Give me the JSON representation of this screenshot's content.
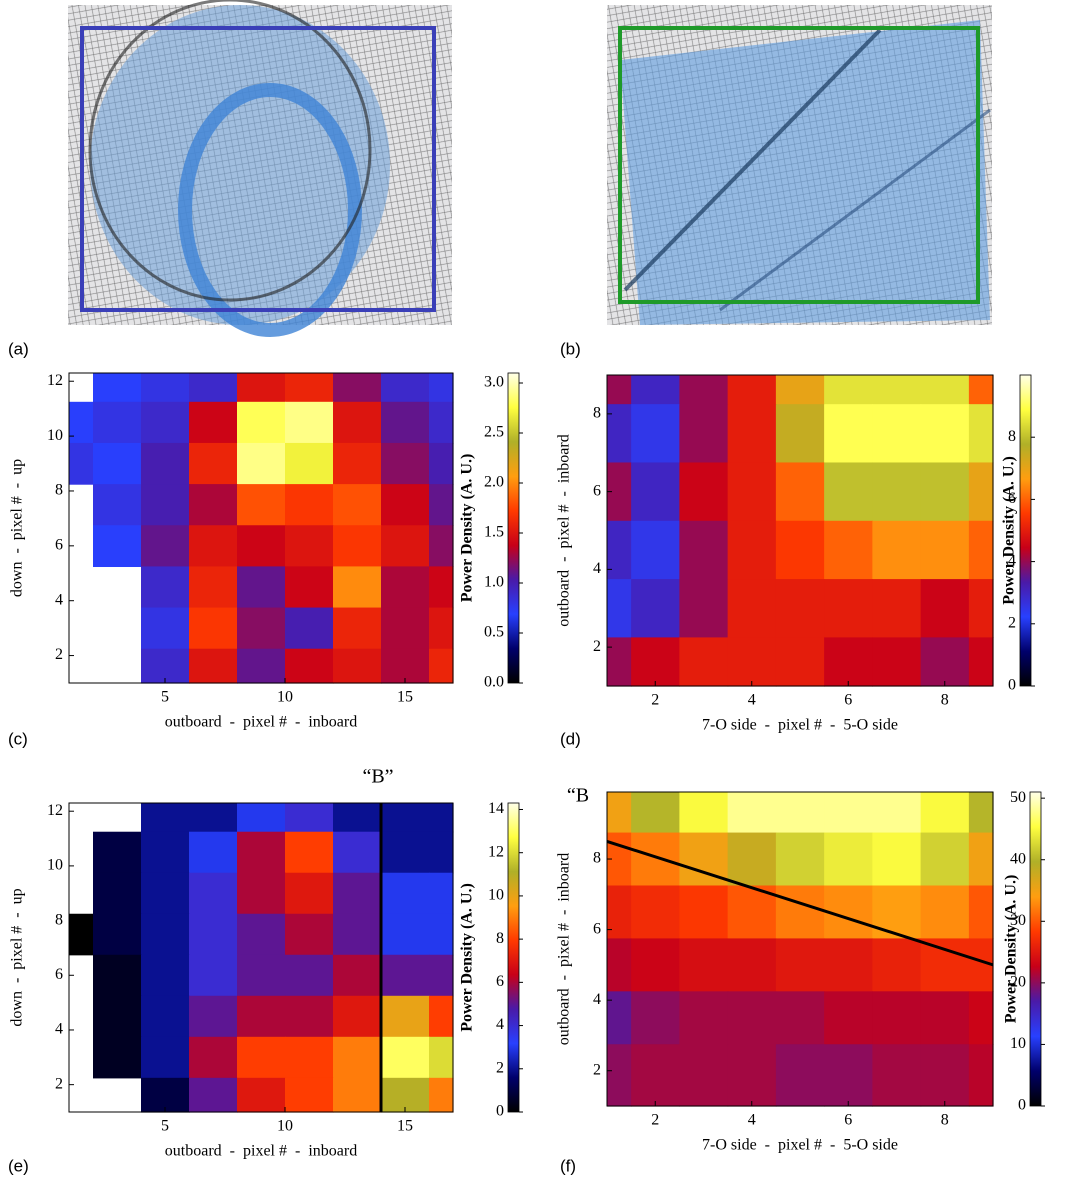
{
  "panels": [
    {
      "label": "(a)"
    },
    {
      "label": "(b)"
    }
  ],
  "chart_data": [
    {
      "type": "heatmap",
      "panel_label": "(c)",
      "xlabel": "outboard  -  pixel #  -  inboard",
      "ylabel": "down  -  pixel #  -  up",
      "colorbar_label": "Power Density (A. U.)",
      "colormap": [
        "#000000",
        "#00006b",
        "#2840ff",
        "#4a1aa8",
        "#c80018",
        "#ff3a00",
        "#ff9e10",
        "#b0b028",
        "#ffff40",
        "#ffffe8"
      ],
      "xlim": [
        1,
        17
      ],
      "ylim": [
        1,
        12.3
      ],
      "xticks": [
        5,
        10,
        15
      ],
      "yticks": [
        2,
        4,
        6,
        8,
        10,
        12
      ],
      "clim": [
        0,
        3.1
      ],
      "cticks": [
        {
          "value": 0,
          "label": "0.0"
        },
        {
          "value": 0.5,
          "label": "0.5"
        },
        {
          "value": 1,
          "label": "1.0"
        },
        {
          "value": 1.5,
          "label": "1.5"
        },
        {
          "value": 2,
          "label": "2.0"
        },
        {
          "value": 2.5,
          "label": "2.5"
        },
        {
          "value": 3,
          "label": "3.0"
        }
      ],
      "x": [
        1,
        3,
        5,
        7,
        9,
        11,
        13,
        15,
        17
      ],
      "y": [
        12,
        10.5,
        9,
        7.5,
        6,
        4.5,
        3,
        1.5
      ],
      "z": [
        [
          null,
          0.7,
          0.8,
          0.9,
          1.5,
          1.6,
          1.2,
          0.9,
          0.8
        ],
        [
          0.7,
          0.8,
          0.9,
          1.4,
          2.8,
          2.9,
          1.5,
          1.1,
          0.9
        ],
        [
          0.8,
          0.7,
          1.0,
          1.6,
          2.9,
          2.7,
          1.6,
          1.2,
          1.0
        ],
        [
          null,
          0.8,
          1.0,
          1.3,
          1.8,
          1.7,
          1.8,
          1.4,
          1.1
        ],
        [
          null,
          0.7,
          1.1,
          1.5,
          1.4,
          1.5,
          1.7,
          1.5,
          1.2
        ],
        [
          null,
          null,
          0.9,
          1.6,
          1.1,
          1.4,
          2.0,
          1.3,
          1.4
        ],
        [
          null,
          null,
          0.8,
          1.7,
          1.2,
          1.0,
          1.6,
          1.3,
          1.5
        ],
        [
          null,
          null,
          0.9,
          1.5,
          1.1,
          1.4,
          1.5,
          1.3,
          1.6
        ]
      ]
    },
    {
      "type": "heatmap",
      "panel_label": "(d)",
      "xlabel": "7-O side  -  pixel #  -  5-O side",
      "ylabel": "outboard  -  pixel #  -  inboard",
      "colorbar_label": "Power Density (A. U.)",
      "colormap": [
        "#000000",
        "#00006b",
        "#2840ff",
        "#4a1aa8",
        "#c80018",
        "#ff3a00",
        "#ff9e10",
        "#b0b028",
        "#ffff40",
        "#ffffe8"
      ],
      "xlim": [
        1,
        9
      ],
      "ylim": [
        1,
        9
      ],
      "xticks": [
        2,
        4,
        6,
        8
      ],
      "yticks": [
        2,
        4,
        6,
        8
      ],
      "clim": [
        0,
        10
      ],
      "cticks": [
        0,
        2,
        4,
        6,
        8
      ],
      "x": [
        1,
        2,
        3,
        4,
        5,
        6,
        7,
        8,
        9
      ],
      "y": [
        9,
        7.5,
        6,
        4.5,
        3,
        1.5
      ],
      "z": [
        [
          4,
          3,
          4,
          5,
          7,
          8.5,
          8.5,
          8.5,
          6
        ],
        [
          3,
          2.5,
          4,
          5,
          7.5,
          9,
          9,
          9,
          8.5
        ],
        [
          4,
          3,
          4.5,
          5,
          6,
          8,
          8,
          8,
          7
        ],
        [
          3,
          2.5,
          4,
          5,
          5.5,
          6,
          6.5,
          6.5,
          6
        ],
        [
          2.5,
          3,
          4,
          5,
          5,
          5,
          5,
          4.5,
          5
        ],
        [
          4,
          4.5,
          5,
          5,
          5,
          4.5,
          4.5,
          4,
          4.5
        ]
      ]
    },
    {
      "type": "heatmap",
      "panel_label": "(e)",
      "xlabel": "outboard  -  pixel #  -  inboard",
      "ylabel": "down  -  pixel #  -  up",
      "colorbar_label": "Power Density (A. U.)",
      "colormap": [
        "#000000",
        "#00006b",
        "#2840ff",
        "#4a1aa8",
        "#c80018",
        "#ff3a00",
        "#ff9e10",
        "#b0b028",
        "#ffff40",
        "#ffffe8"
      ],
      "xlim": [
        1,
        17
      ],
      "ylim": [
        1,
        12.3
      ],
      "xticks": [
        5,
        10,
        15
      ],
      "yticks": [
        2,
        4,
        6,
        8,
        10,
        12
      ],
      "clim": [
        0,
        14.3
      ],
      "cticks": [
        0,
        2,
        4,
        6,
        8,
        10,
        12,
        14
      ],
      "annotation": "“B”",
      "line": {
        "x": [
          14,
          14
        ],
        "y": [
          1,
          12.3
        ]
      },
      "x": [
        1,
        3,
        5,
        7,
        9,
        11,
        13,
        15,
        17
      ],
      "y": [
        12,
        10.5,
        9,
        7.5,
        6,
        4.5,
        3,
        1.5
      ],
      "z": [
        [
          null,
          null,
          2,
          2,
          3,
          4,
          2,
          2,
          2
        ],
        [
          null,
          1,
          2,
          3,
          6,
          8,
          4,
          2,
          2
        ],
        [
          null,
          1,
          2,
          4,
          6,
          7,
          5,
          3,
          3
        ],
        [
          0,
          1,
          2,
          4,
          5,
          6,
          5,
          3,
          3
        ],
        [
          null,
          0.5,
          2,
          4,
          5,
          5,
          6,
          5,
          5
        ],
        [
          null,
          0.5,
          2,
          5,
          6,
          6,
          7,
          10,
          8
        ],
        [
          null,
          0.5,
          2,
          6,
          8,
          8,
          9,
          13,
          12
        ],
        [
          null,
          null,
          1,
          5,
          7,
          8,
          9,
          11,
          9
        ]
      ]
    },
    {
      "type": "heatmap",
      "panel_label": "(f)",
      "xlabel": "7-O side  -  pixel #  -  5-O side",
      "ylabel": "outboard  -  pixel #  -  inboard",
      "colorbar_label": "Power Density (A. U.)",
      "colormap": [
        "#000000",
        "#00006b",
        "#2840ff",
        "#4a1aa8",
        "#c80018",
        "#ff3a00",
        "#ff9e10",
        "#b0b028",
        "#ffff40",
        "#ffffe8"
      ],
      "xlim": [
        1,
        9
      ],
      "ylim": [
        1,
        9.9
      ],
      "xticks": [
        2,
        4,
        6,
        8
      ],
      "yticks": [
        2,
        4,
        6,
        8
      ],
      "clim": [
        0,
        51
      ],
      "cticks": [
        0,
        10,
        20,
        30,
        40,
        50
      ],
      "annotation": "“B",
      "line": {
        "x": [
          1,
          9
        ],
        "y": [
          8.5,
          5
        ]
      },
      "x": [
        1,
        2,
        3,
        4,
        5,
        6,
        7,
        8,
        9
      ],
      "y": [
        9.5,
        8,
        6.5,
        5,
        3.5,
        2
      ],
      "z": [
        [
          35,
          40,
          45,
          48,
          48,
          48,
          48,
          45,
          40
        ],
        [
          30,
          32,
          35,
          38,
          42,
          44,
          45,
          42,
          35
        ],
        [
          26,
          27,
          28,
          30,
          32,
          33,
          34,
          33,
          30
        ],
        [
          22,
          23,
          24,
          24,
          25,
          25,
          26,
          27,
          27
        ],
        [
          18,
          20,
          21,
          21,
          21,
          22,
          22,
          22,
          23
        ],
        [
          20,
          21,
          21,
          21,
          20,
          20,
          21,
          21,
          22
        ]
      ]
    }
  ]
}
